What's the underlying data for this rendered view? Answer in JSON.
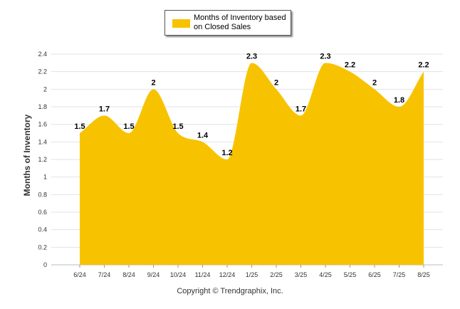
{
  "chart_data": {
    "type": "area",
    "categories": [
      "6/24",
      "7/24",
      "8/24",
      "9/24",
      "10/24",
      "11/24",
      "12/24",
      "1/25",
      "2/25",
      "3/25",
      "4/25",
      "5/25",
      "6/25",
      "7/25",
      "8/25"
    ],
    "series": [
      {
        "name": "Months of Inventory based on Closed Sales",
        "values": [
          1.5,
          1.7,
          1.5,
          2,
          1.5,
          1.4,
          1.2,
          2.3,
          2,
          1.7,
          2.3,
          2.2,
          2,
          1.8,
          2.2
        ],
        "color": "#F7C300"
      }
    ],
    "data_labels": [
      "1.5",
      "1.7",
      "1.5",
      "2",
      "1.5",
      "1.4",
      "1.2",
      "2.3",
      "2",
      "1.7",
      "2.3",
      "2.2",
      "2",
      "1.8",
      "2.2"
    ],
    "ylabel": "Months of Inventory",
    "xlabel": "",
    "ylim": [
      0,
      2.4
    ],
    "yticks": [
      "0",
      "0.2",
      "0.4",
      "0.6",
      "0.8",
      "1",
      "1.2",
      "1.4",
      "1.6",
      "1.8",
      "2",
      "2.2",
      "2.4"
    ],
    "grid": true,
    "legend_position": "top-center"
  },
  "legend": {
    "label": "Months of Inventory based on Closed Sales"
  },
  "footer": {
    "copyright": "Copyright © Trendgraphix, Inc."
  }
}
